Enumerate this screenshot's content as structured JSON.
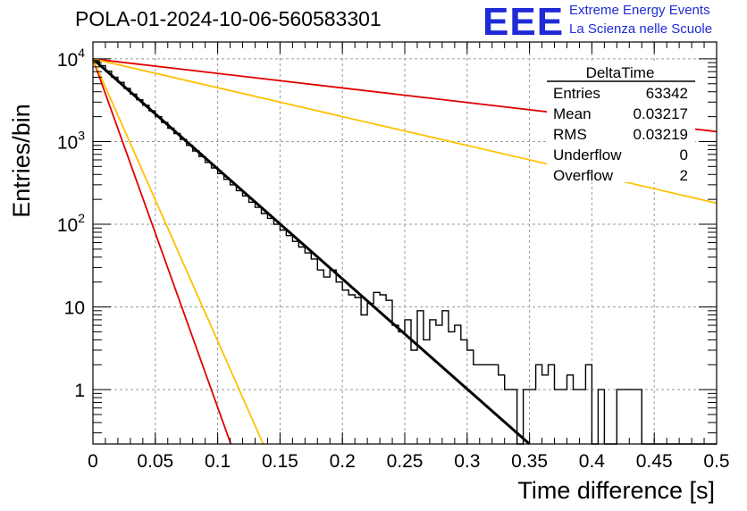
{
  "header": {
    "title": "POLA-01-2024-10-06-560583301",
    "logo_text": "EEE",
    "brand_line1": "Extreme Energy Events",
    "brand_line2": "La Scienza nelle Scuole"
  },
  "stats_box": {
    "title": "DeltaTime",
    "rows": [
      {
        "label": "Entries",
        "value": "63342"
      },
      {
        "label": "Mean",
        "value": "0.03217"
      },
      {
        "label": "RMS",
        "value": "0.03219"
      },
      {
        "label": "Underflow",
        "value": "0"
      },
      {
        "label": "Overflow",
        "value": "2"
      }
    ]
  },
  "chart_data": {
    "type": "line",
    "title": "POLA-01-2024-10-06-560583301",
    "xlabel": "Time difference [s]",
    "ylabel": "Entries/bin",
    "xlim": [
      0,
      0.5
    ],
    "ylim": [
      0.22,
      16000
    ],
    "y_scale": "log",
    "grid": true,
    "x_ticks": [
      "0",
      "0.05",
      "0.1",
      "0.15",
      "0.2",
      "0.25",
      "0.3",
      "0.35",
      "0.4",
      "0.45",
      "0.5"
    ],
    "x_tick_values": [
      0,
      0.05,
      0.1,
      0.15,
      0.2,
      0.25,
      0.3,
      0.35,
      0.4,
      0.45,
      0.5
    ],
    "y_ticks": [
      {
        "value": 10000,
        "base": "10",
        "exp": "4"
      },
      {
        "value": 1000,
        "base": "10",
        "exp": "3"
      },
      {
        "value": 100,
        "base": "10",
        "exp": "2"
      },
      {
        "value": 10,
        "base": "10",
        "exp": ""
      },
      {
        "value": 1,
        "base": "1",
        "exp": ""
      }
    ],
    "histogram": {
      "bin_width": 0.005,
      "color": "#000000",
      "values": [
        9500,
        8300,
        7100,
        6000,
        5200,
        4400,
        3750,
        3200,
        2750,
        2350,
        2000,
        1700,
        1450,
        1250,
        1060,
        900,
        770,
        660,
        560,
        480,
        410,
        350,
        300,
        255,
        220,
        185,
        160,
        135,
        118,
        100,
        85,
        73,
        62,
        53,
        45,
        38,
        28,
        23,
        28,
        20,
        16,
        14,
        13,
        8,
        11,
        15,
        14,
        12,
        6,
        5,
        7,
        3,
        9,
        4,
        7,
        6,
        9,
        5,
        6,
        4,
        3,
        2,
        2,
        2,
        2,
        1.5,
        1,
        1,
        0,
        1,
        1,
        2,
        1.5,
        2,
        1,
        1,
        1.5,
        1,
        1,
        2,
        0,
        1,
        0,
        0,
        1,
        1,
        1,
        1,
        0,
        0,
        0,
        0,
        0,
        0,
        0,
        0,
        0,
        0,
        0,
        0
      ]
    },
    "series": [
      {
        "type": "line",
        "color": "#000000",
        "x": [
          0,
          0.35
        ],
        "y": [
          10000,
          0.22
        ]
      },
      {
        "type": "line",
        "color": "#e00000",
        "x": [
          0,
          0.5
        ],
        "y": [
          10000,
          1320
        ]
      },
      {
        "type": "line",
        "color": "#ffc000",
        "x": [
          0,
          0.5
        ],
        "y": [
          10000,
          180
        ]
      },
      {
        "type": "line",
        "color": "#e00000",
        "x": [
          0,
          0.1105
        ],
        "y": [
          10000,
          0.22
        ]
      },
      {
        "type": "line",
        "color": "#ffc000",
        "x": [
          0,
          0.1365
        ],
        "y": [
          10000,
          0.22
        ]
      }
    ]
  }
}
